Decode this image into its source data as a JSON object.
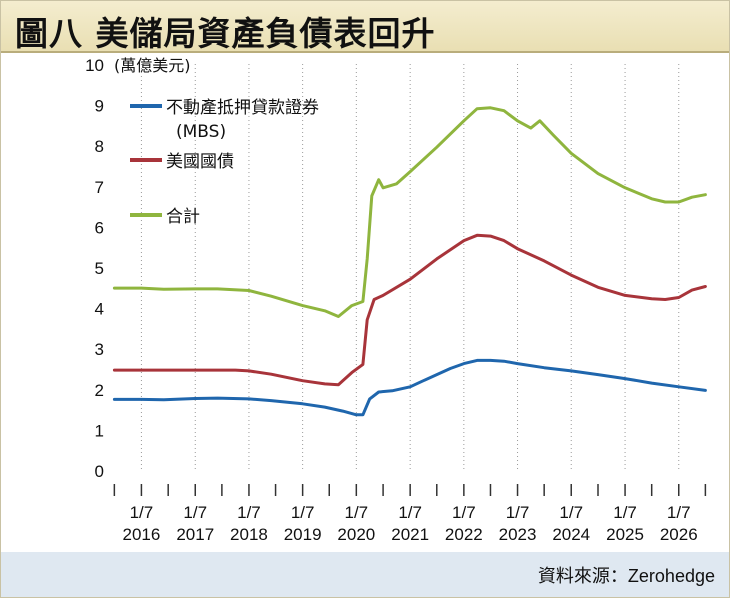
{
  "header": {
    "title": "圖八  美儲局資產負債表回升"
  },
  "footer": {
    "source": "資料來源：Zerohedge"
  },
  "chart_data": {
    "type": "line",
    "title": "圖八  美儲局資產負債表回升",
    "ylabel": "(萬億美元)",
    "xlabel": "",
    "ylim": [
      0,
      10
    ],
    "yticks": [
      0,
      1,
      2,
      3,
      4,
      5,
      6,
      7,
      8,
      9,
      10
    ],
    "xlim": [
      "2015-06-15",
      "2026-08-15"
    ],
    "xticks": [
      {
        "top": "1/7",
        "bottom": "2016",
        "x": "2016-01-01"
      },
      {
        "top": "1/7",
        "bottom": "2017",
        "x": "2017-01-01"
      },
      {
        "top": "1/7",
        "bottom": "2018",
        "x": "2018-01-01"
      },
      {
        "top": "1/7",
        "bottom": "2019",
        "x": "2019-01-01"
      },
      {
        "top": "1/7",
        "bottom": "2020",
        "x": "2020-01-01"
      },
      {
        "top": "1/7",
        "bottom": "2021",
        "x": "2021-01-01"
      },
      {
        "top": "1/7",
        "bottom": "2022",
        "x": "2022-01-01"
      },
      {
        "top": "1/7",
        "bottom": "2023",
        "x": "2023-01-01"
      },
      {
        "top": "1/7",
        "bottom": "2024",
        "x": "2024-01-01"
      },
      {
        "top": "1/7",
        "bottom": "2025",
        "x": "2025-01-01"
      },
      {
        "top": "1/7",
        "bottom": "2026",
        "x": "2026-01-01"
      }
    ],
    "grid": "vertical-dotted",
    "legend": "top-left",
    "series": [
      {
        "name": "不動產抵押貸款證券\n(MBS)",
        "color": "#1f66ad",
        "points": [
          [
            "2015-07-01",
            1.74
          ],
          [
            "2016-01-01",
            1.74
          ],
          [
            "2016-06-01",
            1.73
          ],
          [
            "2017-01-01",
            1.76
          ],
          [
            "2017-06-01",
            1.77
          ],
          [
            "2018-01-01",
            1.75
          ],
          [
            "2018-06-01",
            1.71
          ],
          [
            "2019-01-01",
            1.63
          ],
          [
            "2019-06-01",
            1.55
          ],
          [
            "2019-10-01",
            1.45
          ],
          [
            "2020-01-01",
            1.36
          ],
          [
            "2020-02-15",
            1.36
          ],
          [
            "2020-04-01",
            1.75
          ],
          [
            "2020-06-01",
            1.92
          ],
          [
            "2020-09-01",
            1.95
          ],
          [
            "2021-01-01",
            2.05
          ],
          [
            "2021-04-01",
            2.2
          ],
          [
            "2021-07-01",
            2.35
          ],
          [
            "2021-10-01",
            2.5
          ],
          [
            "2022-01-01",
            2.62
          ],
          [
            "2022-04-01",
            2.7
          ],
          [
            "2022-07-01",
            2.7
          ],
          [
            "2022-10-01",
            2.68
          ],
          [
            "2023-01-01",
            2.62
          ],
          [
            "2023-07-01",
            2.52
          ],
          [
            "2024-01-01",
            2.44
          ],
          [
            "2024-07-01",
            2.35
          ],
          [
            "2025-01-01",
            2.25
          ],
          [
            "2025-07-01",
            2.14
          ],
          [
            "2026-01-01",
            2.05
          ],
          [
            "2026-07-01",
            1.96
          ]
        ]
      },
      {
        "name": "美國國債",
        "color": "#a8343a",
        "points": [
          [
            "2015-07-01",
            2.46
          ],
          [
            "2016-01-01",
            2.46
          ],
          [
            "2017-01-01",
            2.46
          ],
          [
            "2017-10-01",
            2.46
          ],
          [
            "2018-01-01",
            2.44
          ],
          [
            "2018-06-01",
            2.36
          ],
          [
            "2019-01-01",
            2.2
          ],
          [
            "2019-06-01",
            2.12
          ],
          [
            "2019-09-01",
            2.1
          ],
          [
            "2019-12-01",
            2.4
          ],
          [
            "2020-02-15",
            2.6
          ],
          [
            "2020-03-15",
            3.7
          ],
          [
            "2020-05-01",
            4.2
          ],
          [
            "2020-07-01",
            4.3
          ],
          [
            "2021-01-01",
            4.7
          ],
          [
            "2021-07-01",
            5.2
          ],
          [
            "2022-01-01",
            5.65
          ],
          [
            "2022-04-01",
            5.78
          ],
          [
            "2022-07-01",
            5.76
          ],
          [
            "2022-10-01",
            5.65
          ],
          [
            "2023-01-01",
            5.45
          ],
          [
            "2023-07-01",
            5.15
          ],
          [
            "2024-01-01",
            4.8
          ],
          [
            "2024-07-01",
            4.5
          ],
          [
            "2025-01-01",
            4.3
          ],
          [
            "2025-07-01",
            4.22
          ],
          [
            "2025-10-01",
            4.2
          ],
          [
            "2026-01-01",
            4.25
          ],
          [
            "2026-04-01",
            4.43
          ],
          [
            "2026-07-01",
            4.52
          ]
        ]
      },
      {
        "name": "合計",
        "color": "#8fb53e",
        "points": [
          [
            "2015-07-01",
            4.48
          ],
          [
            "2016-01-01",
            4.48
          ],
          [
            "2016-06-01",
            4.45
          ],
          [
            "2017-01-01",
            4.46
          ],
          [
            "2017-06-01",
            4.46
          ],
          [
            "2018-01-01",
            4.42
          ],
          [
            "2018-06-01",
            4.28
          ],
          [
            "2019-01-01",
            4.05
          ],
          [
            "2019-06-01",
            3.92
          ],
          [
            "2019-09-01",
            3.78
          ],
          [
            "2019-12-01",
            4.05
          ],
          [
            "2020-02-15",
            4.15
          ],
          [
            "2020-03-15",
            5.2
          ],
          [
            "2020-04-15",
            6.75
          ],
          [
            "2020-06-01",
            7.15
          ],
          [
            "2020-07-01",
            6.95
          ],
          [
            "2020-10-01",
            7.05
          ],
          [
            "2021-01-01",
            7.35
          ],
          [
            "2021-07-01",
            7.95
          ],
          [
            "2022-01-01",
            8.6
          ],
          [
            "2022-04-01",
            8.9
          ],
          [
            "2022-07-01",
            8.92
          ],
          [
            "2022-10-01",
            8.85
          ],
          [
            "2023-01-01",
            8.6
          ],
          [
            "2023-04-01",
            8.42
          ],
          [
            "2023-06-01",
            8.6
          ],
          [
            "2023-09-01",
            8.25
          ],
          [
            "2024-01-01",
            7.8
          ],
          [
            "2024-07-01",
            7.3
          ],
          [
            "2025-01-01",
            6.95
          ],
          [
            "2025-07-01",
            6.68
          ],
          [
            "2025-10-01",
            6.6
          ],
          [
            "2026-01-01",
            6.6
          ],
          [
            "2026-04-01",
            6.72
          ],
          [
            "2026-07-01",
            6.78
          ]
        ]
      }
    ]
  }
}
